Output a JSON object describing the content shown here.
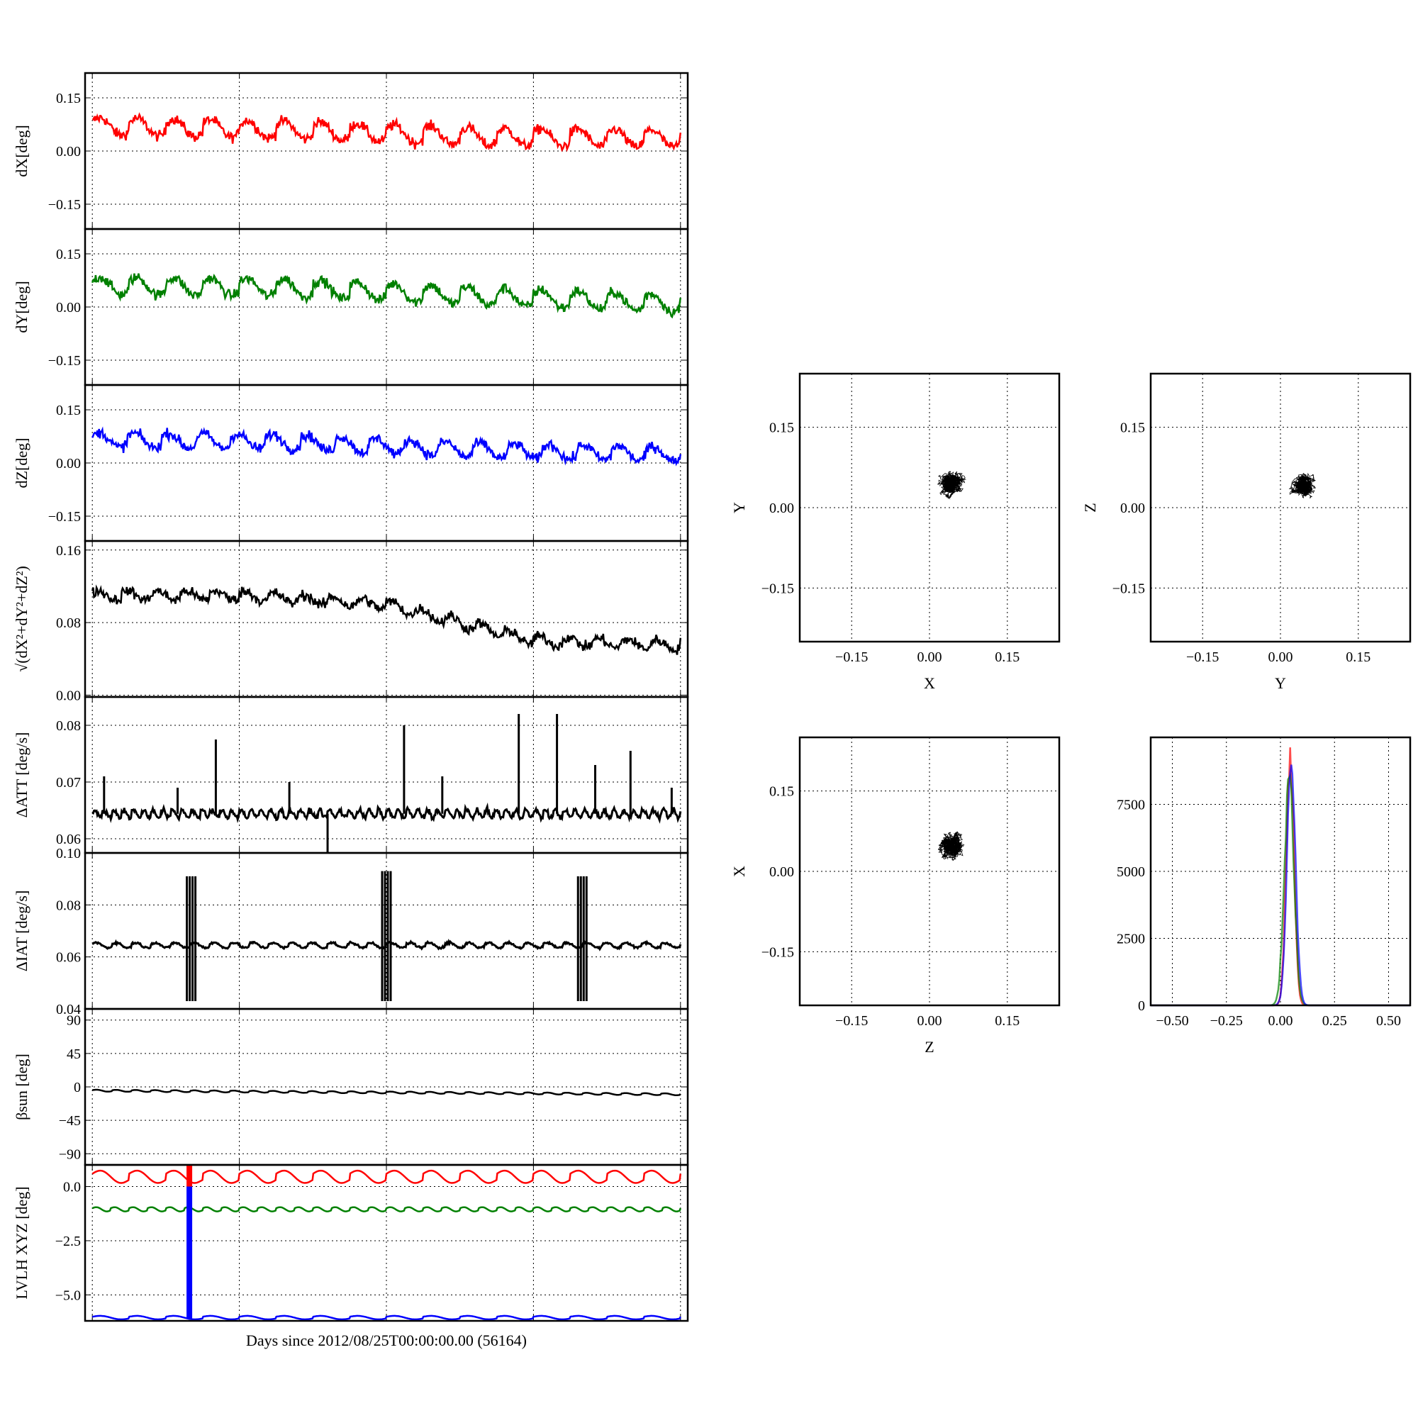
{
  "figure": {
    "xlabel": "Days since 2012/08/25T00:00:00.00 (56164)"
  },
  "chart_data": [
    {
      "id": "dx",
      "type": "line",
      "ylabel": "dX[deg]",
      "ylim": [
        -0.22,
        0.22
      ],
      "yticks": [
        -0.15,
        0.0,
        0.15
      ],
      "yticklabels": [
        "−0.15",
        "0.00",
        "0.15"
      ],
      "grid": true,
      "color": "#ff0000",
      "trend": [
        0.07,
        0.06,
        0.04,
        0.035
      ],
      "oscillation": 0.03,
      "noise": 0.01,
      "cycles": 16
    },
    {
      "id": "dy",
      "type": "line",
      "ylabel": "dY[deg]",
      "ylim": [
        -0.22,
        0.22
      ],
      "yticks": [
        -0.15,
        0.0,
        0.15
      ],
      "yticklabels": [
        "−0.15",
        "0.00",
        "0.15"
      ],
      "grid": true,
      "color": "#008000",
      "trend": [
        0.06,
        0.055,
        0.03,
        0.01
      ],
      "oscillation": 0.03,
      "noise": 0.01,
      "cycles": 16
    },
    {
      "id": "dz",
      "type": "line",
      "ylabel": "dZ[deg]",
      "ylim": [
        -0.22,
        0.22
      ],
      "yticks": [
        -0.15,
        0.0,
        0.15
      ],
      "yticklabels": [
        "−0.15",
        "0.00",
        "0.15"
      ],
      "grid": true,
      "color": "#0000ff",
      "trend": [
        0.065,
        0.06,
        0.035,
        0.025
      ],
      "oscillation": 0.025,
      "noise": 0.01,
      "cycles": 17
    },
    {
      "id": "mag",
      "type": "line",
      "ylabel": "√(dX²+dY²+dZ²)",
      "ylim": [
        -0.002,
        0.17
      ],
      "yticks": [
        0.0,
        0.08,
        0.16
      ],
      "yticklabels": [
        "0.00",
        "0.08",
        "0.16"
      ],
      "grid": true,
      "color": "#000000",
      "trend": [
        0.11,
        0.11,
        0.1,
        0.06,
        0.055
      ],
      "oscillation": 0.006,
      "noise": 0.004,
      "cycles": 20
    },
    {
      "id": "datt",
      "type": "line",
      "ylabel": "ΔATT [deg/s]",
      "ylim": [
        0.0575,
        0.085
      ],
      "yticks": [
        0.06,
        0.07,
        0.08
      ],
      "yticklabels": [
        "0.06",
        "0.07",
        "0.08"
      ],
      "grid": true,
      "color": "#000000",
      "trend": [
        0.0644,
        0.0644
      ],
      "oscillation": 0.0008,
      "noise": 0.0003,
      "cycles": 60,
      "spikes": [
        [
          0.02,
          0.071
        ],
        [
          0.145,
          0.069
        ],
        [
          0.21,
          0.0775
        ],
        [
          0.335,
          0.07
        ],
        [
          0.4,
          0.056
        ],
        [
          0.53,
          0.08
        ],
        [
          0.595,
          0.071
        ],
        [
          0.725,
          0.082
        ],
        [
          0.79,
          0.082
        ],
        [
          0.855,
          0.073
        ],
        [
          0.915,
          0.0755
        ],
        [
          0.985,
          0.069
        ]
      ]
    },
    {
      "id": "diat",
      "type": "line",
      "ylabel": "ΔIAT [deg/s]",
      "ylim": [
        0.04,
        0.1
      ],
      "yticks": [
        0.04,
        0.06,
        0.08,
        0.1
      ],
      "yticklabels": [
        "0.04",
        "0.06",
        "0.08",
        "0.10"
      ],
      "grid": true,
      "color": "#000000",
      "trend": [
        0.0645,
        0.0645
      ],
      "oscillation": 0.0012,
      "noise": 0.0003,
      "cycles": 30,
      "bursts": [
        [
          0.168,
          0.043,
          0.091
        ],
        [
          0.5,
          0.043,
          0.093
        ],
        [
          0.833,
          0.043,
          0.091
        ]
      ]
    },
    {
      "id": "beta",
      "type": "line",
      "ylabel": "βsun [deg]",
      "ylim": [
        -105,
        105
      ],
      "yticks": [
        -90,
        -45,
        0,
        45,
        90
      ],
      "yticklabels": [
        "−90",
        "−45",
        "0",
        "45",
        "90"
      ],
      "grid": true,
      "color": "#000000",
      "trend": [
        -5,
        -10
      ],
      "oscillation": 1.5,
      "noise": 0.0,
      "cycles": 30
    },
    {
      "id": "lvlh",
      "type": "line",
      "ylabel": "LVLH XYZ [deg]",
      "ylim": [
        -6.2,
        1.0
      ],
      "yticks": [
        -5.0,
        -2.5,
        0.0
      ],
      "yticklabels": [
        "−5.0",
        "−2.5",
        "0.0"
      ],
      "grid": true,
      "series": [
        {
          "color": "#ff0000",
          "trend": [
            0.45,
            0.45
          ],
          "oscillation": 0.35,
          "cycles": 16
        },
        {
          "color": "#008000",
          "trend": [
            -1.05,
            -1.05
          ],
          "oscillation": 0.12,
          "cycles": 32
        },
        {
          "color": "#0000ff",
          "trend": [
            -6.05,
            -6.05
          ],
          "oscillation": 0.1,
          "cycles": 16
        }
      ],
      "bar": {
        "x": 0.165,
        "from": -6.1,
        "to": 0.0,
        "top_from": 0.0,
        "top_to": 1.0
      }
    },
    {
      "id": "scatter-xy",
      "type": "scatter",
      "xlabel": "X",
      "ylabel": "Y",
      "xlim": [
        -0.25,
        0.25
      ],
      "ylim": [
        -0.25,
        0.25
      ],
      "ticks": [
        -0.15,
        0.0,
        0.15
      ],
      "ticklabels": [
        "−0.15",
        "0.00",
        "0.15"
      ],
      "grid": true,
      "center": [
        0.045,
        0.045
      ],
      "spread": [
        0.025,
        0.025
      ]
    },
    {
      "id": "scatter-yz",
      "type": "scatter",
      "xlabel": "Y",
      "ylabel": "Z",
      "xlim": [
        -0.25,
        0.25
      ],
      "ylim": [
        -0.25,
        0.25
      ],
      "ticks": [
        -0.15,
        0.0,
        0.15
      ],
      "ticklabels": [
        "−0.15",
        "0.00",
        "0.15"
      ],
      "grid": true,
      "center": [
        0.045,
        0.045
      ],
      "spread": [
        0.03,
        0.02
      ]
    },
    {
      "id": "scatter-zx",
      "type": "scatter",
      "xlabel": "Z",
      "ylabel": "X",
      "xlim": [
        -0.25,
        0.25
      ],
      "ylim": [
        -0.25,
        0.25
      ],
      "ticks": [
        -0.15,
        0.0,
        0.15
      ],
      "ticklabels": [
        "−0.15",
        "0.00",
        "0.15"
      ],
      "grid": true,
      "center": [
        0.045,
        0.05
      ],
      "spread": [
        0.03,
        0.025
      ]
    },
    {
      "id": "histogram",
      "type": "line",
      "xlim": [
        -0.6,
        0.6
      ],
      "ylim": [
        0,
        10000
      ],
      "xticks": [
        -0.5,
        -0.25,
        0.0,
        0.25,
        0.5
      ],
      "xticklabels": [
        "−0.50",
        "−0.25",
        "0.00",
        "0.25",
        "0.50"
      ],
      "yticks": [
        0,
        2500,
        5000,
        7500
      ],
      "yticklabels": [
        "0",
        "2500",
        "5000",
        "7500"
      ],
      "grid": true,
      "series": [
        {
          "color": "#ff0000",
          "center": 0.045,
          "width": 0.018,
          "peak": 9300
        },
        {
          "color": "#008000",
          "center": 0.04,
          "width": 0.022,
          "peak": 8600
        },
        {
          "color": "#0000ff",
          "center": 0.05,
          "width": 0.02,
          "peak": 8900
        }
      ]
    }
  ]
}
